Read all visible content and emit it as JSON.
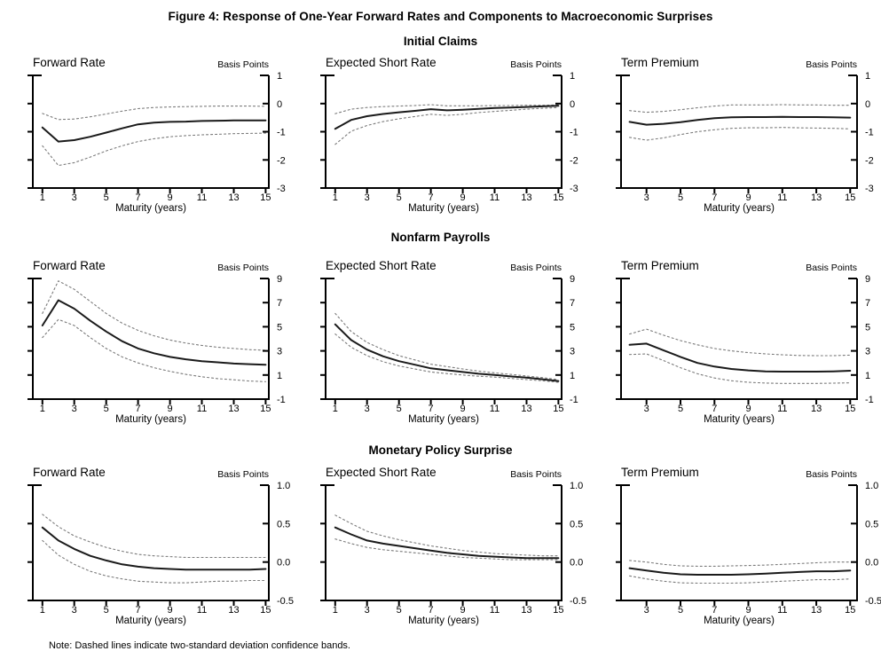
{
  "figure_title": "Figure 4: Response of One-Year Forward Rates and Components to Macroeconomic Surprises",
  "note": "Note: Dashed lines indicate two-standard deviation confidence bands.",
  "sections": [
    {
      "title": "Initial Claims"
    },
    {
      "title": "Nonfarm Payrolls"
    },
    {
      "title": "Monetary Policy Surprise"
    }
  ],
  "colors": {
    "line": "#1a1a1a",
    "band": "#7a7a7a",
    "axis": "#000000"
  },
  "chart_data": [
    {
      "type": "line",
      "section": "Initial Claims",
      "title": "Forward Rate",
      "unit_label": "Basis Points",
      "xlabel": "Maturity (years)",
      "xlim": [
        0.4,
        15.2
      ],
      "ylim": [
        -3,
        1
      ],
      "xticks": [
        1,
        3,
        5,
        7,
        9,
        11,
        13,
        15
      ],
      "yticks": [
        1,
        0,
        -1,
        -2,
        -3
      ],
      "ytick_labels": [
        "1",
        "0",
        "-1",
        "-2",
        "-3"
      ],
      "x": [
        1,
        2,
        3,
        4,
        5,
        6,
        7,
        8,
        9,
        10,
        11,
        12,
        13,
        14,
        15
      ],
      "series": [
        {
          "name": "response",
          "style": "solid",
          "values": [
            -0.85,
            -1.35,
            -1.3,
            -1.18,
            -1.03,
            -0.88,
            -0.74,
            -0.68,
            -0.65,
            -0.64,
            -0.62,
            -0.61,
            -0.6,
            -0.6,
            -0.6
          ]
        },
        {
          "name": "upper_band",
          "style": "dashed",
          "values": [
            -0.35,
            -0.57,
            -0.55,
            -0.47,
            -0.37,
            -0.27,
            -0.18,
            -0.14,
            -0.12,
            -0.11,
            -0.1,
            -0.09,
            -0.09,
            -0.09,
            -0.1
          ]
        },
        {
          "name": "lower_band",
          "style": "dashed",
          "values": [
            -1.5,
            -2.2,
            -2.1,
            -1.9,
            -1.68,
            -1.5,
            -1.35,
            -1.25,
            -1.18,
            -1.14,
            -1.11,
            -1.09,
            -1.07,
            -1.06,
            -1.05
          ]
        }
      ]
    },
    {
      "type": "line",
      "section": "Initial Claims",
      "title": "Expected Short Rate",
      "unit_label": "Basis Points",
      "xlabel": "Maturity (years)",
      "xlim": [
        0.4,
        15.2
      ],
      "ylim": [
        -3,
        1
      ],
      "xticks": [
        1,
        3,
        5,
        7,
        9,
        11,
        13,
        15
      ],
      "yticks": [
        1,
        0,
        -1,
        -2,
        -3
      ],
      "ytick_labels": [
        "1",
        "0",
        "-1",
        "-2",
        "-3"
      ],
      "x": [
        1,
        2,
        3,
        4,
        5,
        6,
        7,
        8,
        9,
        10,
        11,
        12,
        13,
        14,
        15
      ],
      "series": [
        {
          "name": "response",
          "style": "solid",
          "values": [
            -0.9,
            -0.58,
            -0.45,
            -0.37,
            -0.31,
            -0.26,
            -0.2,
            -0.24,
            -0.22,
            -0.19,
            -0.16,
            -0.14,
            -0.12,
            -0.1,
            -0.08
          ]
        },
        {
          "name": "upper_band",
          "style": "dashed",
          "values": [
            -0.36,
            -0.2,
            -0.14,
            -0.11,
            -0.09,
            -0.07,
            -0.04,
            -0.08,
            -0.08,
            -0.08,
            -0.07,
            -0.07,
            -0.06,
            -0.06,
            -0.05
          ]
        },
        {
          "name": "lower_band",
          "style": "dashed",
          "values": [
            -1.45,
            -0.98,
            -0.78,
            -0.64,
            -0.54,
            -0.46,
            -0.38,
            -0.42,
            -0.38,
            -0.32,
            -0.28,
            -0.24,
            -0.2,
            -0.17,
            -0.14
          ]
        }
      ]
    },
    {
      "type": "line",
      "section": "Initial Claims",
      "title": "Term Premium",
      "unit_label": "Basis Points",
      "xlabel": "Maturity (years)",
      "xlim": [
        1.5,
        15.4
      ],
      "ylim": [
        -3,
        1
      ],
      "xticks": [
        3,
        5,
        7,
        9,
        11,
        13,
        15
      ],
      "yticks": [
        1,
        0,
        -1,
        -2,
        -3
      ],
      "ytick_labels": [
        "1",
        "0",
        "-1",
        "-2",
        "-3"
      ],
      "x": [
        2,
        3,
        4,
        5,
        6,
        7,
        8,
        9,
        10,
        11,
        12,
        13,
        14,
        15
      ],
      "series": [
        {
          "name": "response",
          "style": "solid",
          "values": [
            -0.65,
            -0.75,
            -0.72,
            -0.66,
            -0.58,
            -0.52,
            -0.49,
            -0.48,
            -0.48,
            -0.47,
            -0.48,
            -0.48,
            -0.49,
            -0.5
          ]
        },
        {
          "name": "upper_band",
          "style": "dashed",
          "values": [
            -0.25,
            -0.31,
            -0.28,
            -0.22,
            -0.15,
            -0.09,
            -0.05,
            -0.05,
            -0.05,
            -0.04,
            -0.05,
            -0.05,
            -0.06,
            -0.06
          ]
        },
        {
          "name": "lower_band",
          "style": "dashed",
          "values": [
            -1.2,
            -1.3,
            -1.22,
            -1.1,
            -1.0,
            -0.93,
            -0.88,
            -0.86,
            -0.86,
            -0.85,
            -0.86,
            -0.87,
            -0.88,
            -0.9
          ]
        }
      ]
    },
    {
      "type": "line",
      "section": "Nonfarm Payrolls",
      "title": "Forward Rate",
      "unit_label": "Basis Points",
      "xlabel": "Maturity (years)",
      "xlim": [
        0.4,
        15.2
      ],
      "ylim": [
        -1,
        9
      ],
      "xticks": [
        1,
        3,
        5,
        7,
        9,
        11,
        13,
        15
      ],
      "yticks": [
        9,
        7,
        5,
        3,
        1,
        -1
      ],
      "ytick_labels": [
        "9",
        "7",
        "5",
        "3",
        "1",
        "-1"
      ],
      "x": [
        1,
        2,
        3,
        4,
        5,
        6,
        7,
        8,
        9,
        10,
        11,
        12,
        13,
        14,
        15
      ],
      "series": [
        {
          "name": "response",
          "style": "solid",
          "values": [
            5.1,
            7.2,
            6.5,
            5.5,
            4.6,
            3.8,
            3.2,
            2.8,
            2.5,
            2.3,
            2.15,
            2.05,
            1.95,
            1.9,
            1.85
          ]
        },
        {
          "name": "upper_band",
          "style": "dashed",
          "values": [
            6.1,
            8.8,
            8.1,
            7.1,
            6.1,
            5.3,
            4.7,
            4.25,
            3.9,
            3.65,
            3.45,
            3.3,
            3.2,
            3.1,
            3.05
          ]
        },
        {
          "name": "lower_band",
          "style": "dashed",
          "values": [
            4.1,
            5.6,
            5.1,
            4.1,
            3.2,
            2.5,
            2.0,
            1.6,
            1.3,
            1.05,
            0.85,
            0.7,
            0.6,
            0.5,
            0.45
          ]
        }
      ]
    },
    {
      "type": "line",
      "section": "Nonfarm Payrolls",
      "title": "Expected Short Rate",
      "unit_label": "Basis Points",
      "xlabel": "Maturity (years)",
      "xlim": [
        0.4,
        15.2
      ],
      "ylim": [
        -1,
        9
      ],
      "xticks": [
        1,
        3,
        5,
        7,
        9,
        11,
        13,
        15
      ],
      "yticks": [
        9,
        7,
        5,
        3,
        1,
        -1
      ],
      "ytick_labels": [
        "9",
        "7",
        "5",
        "3",
        "1",
        "-1"
      ],
      "x": [
        1,
        2,
        3,
        4,
        5,
        6,
        7,
        8,
        9,
        10,
        11,
        12,
        13,
        14,
        15
      ],
      "series": [
        {
          "name": "response",
          "style": "solid",
          "values": [
            5.2,
            3.9,
            3.1,
            2.55,
            2.15,
            1.85,
            1.55,
            1.4,
            1.25,
            1.1,
            1.0,
            0.88,
            0.78,
            0.65,
            0.5
          ]
        },
        {
          "name": "upper_band",
          "style": "dashed",
          "values": [
            6.1,
            4.6,
            3.7,
            3.1,
            2.6,
            2.25,
            1.9,
            1.7,
            1.5,
            1.32,
            1.18,
            1.05,
            0.92,
            0.78,
            0.62
          ]
        },
        {
          "name": "lower_band",
          "style": "dashed",
          "values": [
            4.4,
            3.3,
            2.6,
            2.1,
            1.75,
            1.5,
            1.25,
            1.12,
            1.0,
            0.9,
            0.82,
            0.72,
            0.62,
            0.52,
            0.4
          ]
        }
      ]
    },
    {
      "type": "line",
      "section": "Nonfarm Payrolls",
      "title": "Term Premium",
      "unit_label": "Basis Points",
      "xlabel": "Maturity (years)",
      "xlim": [
        1.5,
        15.4
      ],
      "ylim": [
        -1,
        9
      ],
      "xticks": [
        3,
        5,
        7,
        9,
        11,
        13,
        15
      ],
      "yticks": [
        9,
        7,
        5,
        3,
        1,
        -1
      ],
      "ytick_labels": [
        "9",
        "7",
        "5",
        "3",
        "1",
        "-1"
      ],
      "x": [
        2,
        3,
        4,
        5,
        6,
        7,
        8,
        9,
        10,
        11,
        12,
        13,
        14,
        15
      ],
      "series": [
        {
          "name": "response",
          "style": "solid",
          "values": [
            3.5,
            3.6,
            3.05,
            2.5,
            2.0,
            1.7,
            1.5,
            1.38,
            1.3,
            1.28,
            1.28,
            1.28,
            1.3,
            1.35
          ]
        },
        {
          "name": "upper_band",
          "style": "dashed",
          "values": [
            4.4,
            4.8,
            4.3,
            3.85,
            3.5,
            3.2,
            3.0,
            2.85,
            2.75,
            2.68,
            2.62,
            2.6,
            2.6,
            2.65
          ]
        },
        {
          "name": "lower_band",
          "style": "dashed",
          "values": [
            2.7,
            2.75,
            2.2,
            1.6,
            1.1,
            0.75,
            0.52,
            0.4,
            0.33,
            0.3,
            0.3,
            0.3,
            0.32,
            0.35
          ]
        }
      ]
    },
    {
      "type": "line",
      "section": "Monetary Policy Surprise",
      "title": "Forward Rate",
      "unit_label": "Basis Points",
      "xlabel": "Maturity (years)",
      "xlim": [
        0.4,
        15.2
      ],
      "ylim": [
        -0.5,
        1.0
      ],
      "xticks": [
        1,
        3,
        5,
        7,
        9,
        11,
        13,
        15
      ],
      "yticks": [
        1.0,
        0.5,
        0.0,
        -0.5
      ],
      "ytick_labels": [
        "1.0",
        "0.5",
        "0.0",
        "-0.5"
      ],
      "x": [
        1,
        2,
        3,
        4,
        5,
        6,
        7,
        8,
        9,
        10,
        11,
        12,
        13,
        14,
        15
      ],
      "series": [
        {
          "name": "response",
          "style": "solid",
          "values": [
            0.45,
            0.28,
            0.17,
            0.08,
            0.02,
            -0.03,
            -0.06,
            -0.08,
            -0.09,
            -0.1,
            -0.1,
            -0.1,
            -0.1,
            -0.1,
            -0.09
          ]
        },
        {
          "name": "upper_band",
          "style": "dashed",
          "values": [
            0.62,
            0.46,
            0.34,
            0.26,
            0.19,
            0.14,
            0.1,
            0.08,
            0.07,
            0.06,
            0.06,
            0.06,
            0.06,
            0.06,
            0.06
          ]
        },
        {
          "name": "lower_band",
          "style": "dashed",
          "values": [
            0.28,
            0.09,
            -0.03,
            -0.12,
            -0.18,
            -0.22,
            -0.25,
            -0.26,
            -0.27,
            -0.27,
            -0.26,
            -0.25,
            -0.25,
            -0.24,
            -0.24
          ]
        }
      ]
    },
    {
      "type": "line",
      "section": "Monetary Policy Surprise",
      "title": "Expected Short Rate",
      "unit_label": "Basis Points",
      "xlabel": "Maturity (years)",
      "xlim": [
        0.4,
        15.2
      ],
      "ylim": [
        -0.5,
        1.0
      ],
      "xticks": [
        1,
        3,
        5,
        7,
        9,
        11,
        13,
        15
      ],
      "yticks": [
        1.0,
        0.5,
        0.0,
        -0.5
      ],
      "ytick_labels": [
        "1.0",
        "0.5",
        "0.0",
        "-0.5"
      ],
      "x": [
        1,
        2,
        3,
        4,
        5,
        6,
        7,
        8,
        9,
        10,
        11,
        12,
        13,
        14,
        15
      ],
      "series": [
        {
          "name": "response",
          "style": "solid",
          "values": [
            0.45,
            0.36,
            0.28,
            0.24,
            0.21,
            0.18,
            0.15,
            0.12,
            0.1,
            0.08,
            0.07,
            0.06,
            0.05,
            0.05,
            0.05
          ]
        },
        {
          "name": "upper_band",
          "style": "dashed",
          "values": [
            0.61,
            0.5,
            0.4,
            0.34,
            0.29,
            0.25,
            0.21,
            0.18,
            0.15,
            0.13,
            0.11,
            0.1,
            0.09,
            0.08,
            0.08
          ]
        },
        {
          "name": "lower_band",
          "style": "dashed",
          "values": [
            0.3,
            0.24,
            0.19,
            0.16,
            0.14,
            0.12,
            0.1,
            0.08,
            0.06,
            0.05,
            0.04,
            0.03,
            0.03,
            0.03,
            0.03
          ]
        }
      ]
    },
    {
      "type": "line",
      "section": "Monetary Policy Surprise",
      "title": "Term Premium",
      "unit_label": "Basis Points",
      "xlabel": "Maturity (years)",
      "xlim": [
        1.5,
        15.4
      ],
      "ylim": [
        -0.5,
        1.0
      ],
      "xticks": [
        3,
        5,
        7,
        9,
        11,
        13,
        15
      ],
      "yticks": [
        1.0,
        0.5,
        0.0,
        -0.5
      ],
      "ytick_labels": [
        "1.0",
        "0.5",
        "0.0",
        "-0.5"
      ],
      "x": [
        2,
        3,
        4,
        5,
        6,
        7,
        8,
        9,
        10,
        11,
        12,
        13,
        14,
        15
      ],
      "series": [
        {
          "name": "response",
          "style": "solid",
          "values": [
            -0.08,
            -0.11,
            -0.14,
            -0.16,
            -0.165,
            -0.165,
            -0.165,
            -0.16,
            -0.15,
            -0.14,
            -0.13,
            -0.12,
            -0.12,
            -0.11
          ]
        },
        {
          "name": "upper_band",
          "style": "dashed",
          "values": [
            0.02,
            0.0,
            -0.03,
            -0.05,
            -0.055,
            -0.055,
            -0.05,
            -0.045,
            -0.04,
            -0.03,
            -0.02,
            -0.01,
            0.0,
            0.0
          ]
        },
        {
          "name": "lower_band",
          "style": "dashed",
          "values": [
            -0.18,
            -0.22,
            -0.25,
            -0.27,
            -0.275,
            -0.275,
            -0.275,
            -0.27,
            -0.26,
            -0.25,
            -0.24,
            -0.23,
            -0.23,
            -0.22
          ]
        }
      ]
    }
  ]
}
